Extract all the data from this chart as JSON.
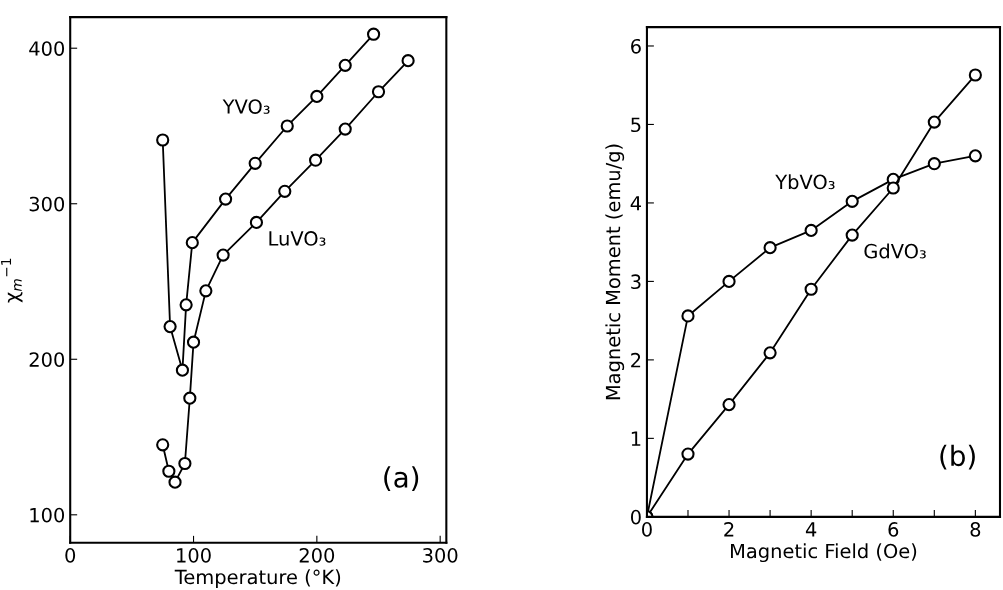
{
  "chart_data": [
    {
      "type": "line",
      "xlabel": "Temperature (°K)",
      "ylabel": "χ$_{m}$$^{−1}$",
      "xlim": [
        0,
        305
      ],
      "ylim": [
        82,
        420
      ],
      "xticks": [
        0,
        100,
        200,
        300
      ],
      "yticks": [
        100,
        200,
        300,
        400
      ],
      "marker": "circle",
      "grid": false,
      "annotations": [
        "(a)"
      ],
      "series": [
        {
          "name": "YVO₃",
          "color": "#000000",
          "x": [
            75,
            81,
            91,
            94,
            99,
            126,
            150,
            176,
            200,
            223,
            246
          ],
          "values": [
            341,
            221,
            193,
            235,
            275,
            303,
            326,
            350,
            369,
            389,
            409
          ]
        },
        {
          "name": "LuVO₃",
          "color": "#000000",
          "x": [
            75,
            80,
            85,
            93,
            97,
            100,
            110,
            124,
            151,
            174,
            199,
            223,
            250,
            274
          ],
          "values": [
            145,
            128,
            121,
            133,
            175,
            211,
            244,
            267,
            288,
            308,
            328,
            348,
            372,
            392
          ]
        }
      ]
    },
    {
      "type": "line",
      "xlabel": "Magnetic Field (Oe)",
      "ylabel": "Magnetic Moment (emu/g)",
      "xlim": [
        0,
        8.6
      ],
      "ylim": [
        0,
        6.24
      ],
      "xticks": [
        0,
        {
          "value": 1,
          "label": null
        },
        2,
        {
          "value": 3,
          "label": null
        },
        4,
        {
          "value": 5,
          "label": null
        },
        6,
        {
          "value": 7,
          "label": null
        },
        8
      ],
      "yticks": [
        0,
        1,
        2,
        3,
        4,
        5,
        6
      ],
      "marker": "circle",
      "grid": false,
      "annotations": [
        "(b)"
      ],
      "series": [
        {
          "name": "YbVO₃",
          "color": "#000000",
          "x": [
            0,
            1,
            2,
            3,
            4,
            5,
            6,
            7,
            8
          ],
          "values": [
            0,
            2.56,
            3.0,
            3.43,
            3.65,
            4.02,
            4.3,
            4.5,
            4.6
          ]
        },
        {
          "name": "GdVO₃",
          "color": "#000000",
          "x": [
            0,
            1,
            2,
            3,
            4,
            5,
            6,
            7,
            8
          ],
          "values": [
            0,
            0.8,
            1.43,
            2.09,
            2.9,
            3.59,
            4.19,
            5.03,
            5.63
          ]
        }
      ]
    }
  ]
}
